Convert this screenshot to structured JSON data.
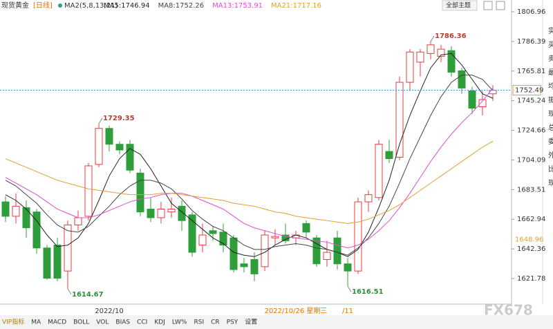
{
  "chart_data": {
    "type": "candlestick",
    "title": "现货黄金",
    "period": "[日线]",
    "indicator": "MA2(5,8,13,21)",
    "theme_menu": "全部主题",
    "categories": [
      null,
      null,
      null,
      null,
      null,
      null,
      null,
      null,
      null,
      null,
      "2022/10",
      null,
      null,
      null,
      null,
      null,
      null,
      null,
      null,
      null,
      null,
      null,
      null,
      null,
      null,
      null,
      null,
      null,
      "2022/10/26 星期三",
      null,
      null,
      null,
      null,
      "/11",
      null,
      null,
      null,
      null,
      null,
      null,
      null,
      null,
      null,
      null,
      null,
      null,
      null,
      null
    ],
    "open": [
      1675,
      1665,
      1671,
      1668,
      1643,
      1645,
      1627,
      1659,
      1665,
      1701,
      1726,
      1715,
      1715,
      1695,
      1670,
      1664,
      1668,
      1672,
      1666,
      1645,
      1655,
      1654,
      1650,
      1632,
      1635,
      1630,
      1650,
      1652,
      1650,
      1660,
      1650,
      1635,
      1650,
      1632,
      1627,
      1675,
      1678,
      1710,
      1706,
      1758,
      1772,
      1778,
      1776,
      1780,
      1766,
      1752,
      1741,
      1750
    ],
    "high": [
      1679,
      1681,
      1676,
      1670,
      1645,
      1650,
      1662,
      1669,
      1702,
      1729.35,
      1728,
      1717,
      1718,
      1698,
      1678,
      1675,
      1678,
      1676,
      1668,
      1660,
      1658,
      1660,
      1652,
      1636,
      1640,
      1655,
      1656,
      1660,
      1655,
      1662,
      1652,
      1648,
      1655,
      1636,
      1678,
      1683,
      1718,
      1718,
      1762,
      1781,
      1781,
      1786.36,
      1784,
      1783,
      1768,
      1755,
      1752,
      1756
    ],
    "low": [
      1661,
      1660,
      1650,
      1639,
      1621,
      1620,
      1614.67,
      1655,
      1662,
      1699,
      1710,
      1708,
      1695,
      1665,
      1661,
      1660,
      1664,
      1655,
      1637,
      1640,
      1648,
      1640,
      1626,
      1626,
      1620,
      1627,
      1645,
      1646,
      1645,
      1650,
      1630,
      1630,
      1628,
      1616.51,
      1625,
      1668,
      1676,
      1702,
      1704,
      1752,
      1762,
      1774,
      1772,
      1762,
      1750,
      1736,
      1735,
      1745
    ],
    "close": [
      1665,
      1672,
      1657,
      1643,
      1622,
      1622,
      1659,
      1664,
      1700,
      1726,
      1715,
      1711,
      1697,
      1668,
      1664,
      1670,
      1670,
      1662,
      1640,
      1652,
      1653,
      1645,
      1628,
      1630,
      1625,
      1652,
      1651,
      1648,
      1652,
      1654,
      1632,
      1640,
      1632,
      1627,
      1675,
      1680,
      1715,
      1705,
      1758,
      1779,
      1779,
      1784,
      1781,
      1765,
      1754,
      1740,
      1746,
      1752.49
    ],
    "up_color": "#e8383d",
    "down_color": "#2e9e3a",
    "series": [
      {
        "name": "MA5:1746.94",
        "color": "#222222",
        "values": [
          1680,
          1676,
          1670,
          1662,
          1652,
          1644,
          1645,
          1650,
          1660,
          1676,
          1693,
          1705,
          1712,
          1708,
          1698,
          1686,
          1674,
          1668,
          1662,
          1656,
          1650,
          1646,
          1640,
          1638,
          1637,
          1640,
          1645,
          1649,
          1652,
          1650,
          1646,
          1642,
          1640,
          1637,
          1642,
          1654,
          1671,
          1690,
          1715,
          1735,
          1752,
          1768,
          1777,
          1778,
          1770,
          1760,
          1750,
          1746.94
        ]
      },
      {
        "name": "MA8:1752.26",
        "color": "#444444",
        "values": [
          1690,
          1686,
          1680,
          1674,
          1666,
          1659,
          1655,
          1654,
          1658,
          1665,
          1672,
          1680,
          1686,
          1690,
          1690,
          1688,
          1684,
          1677,
          1669,
          1663,
          1658,
          1655,
          1650,
          1645,
          1642,
          1642,
          1644,
          1645,
          1646,
          1645,
          1643,
          1642,
          1640,
          1638,
          1643,
          1650,
          1660,
          1672,
          1688,
          1705,
          1720,
          1735,
          1748,
          1758,
          1763,
          1763,
          1760,
          1752.26
        ]
      },
      {
        "name": "MA13:1753.91",
        "color": "#d94fd0",
        "values": [
          1692,
          1688,
          1684,
          1680,
          1675,
          1670,
          1667,
          1664,
          1664,
          1666,
          1669,
          1672,
          1675,
          1677,
          1678,
          1680,
          1681,
          1681,
          1679,
          1676,
          1673,
          1670,
          1665,
          1660,
          1657,
          1655,
          1653,
          1651,
          1650,
          1649,
          1648,
          1647,
          1645,
          1643,
          1645,
          1649,
          1655,
          1662,
          1671,
          1681,
          1692,
          1703,
          1713,
          1722,
          1730,
          1737,
          1745,
          1753.91
        ]
      },
      {
        "name": "MA21:1717.16",
        "color": "#e0a030",
        "values": [
          1705,
          1702,
          1699,
          1696,
          1693,
          1690,
          1688,
          1686,
          1684,
          1683,
          1682,
          1681,
          1680,
          1680,
          1680,
          1681,
          1681,
          1680,
          1679,
          1678,
          1677,
          1676,
          1674,
          1673,
          1672,
          1670,
          1668,
          1667,
          1665,
          1664,
          1663,
          1662,
          1661,
          1660,
          1661,
          1663,
          1666,
          1669,
          1673,
          1678,
          1683,
          1688,
          1693,
          1698,
          1703,
          1708,
          1713,
          1717.16
        ]
      }
    ],
    "ylim": [
      1611.23,
      1815.12
    ],
    "yticks": [
      1806.96,
      1786.39,
      1765.81,
      1745.24,
      1724.66,
      1704.09,
      1683.51,
      1662.94,
      1642.36,
      1621.78
    ],
    "marker_price": 1648.96,
    "value_annotations": [
      "chart_data.high.9",
      "chart_data.low.6",
      "chart_data.low.33",
      "chart_data.high.41"
    ],
    "tabs": [
      "VIP指标",
      "MA",
      "MACD",
      "BOLL",
      "VOL",
      "BIAS",
      "CCI",
      "KDJ",
      "LW%",
      "RSI",
      "CR",
      "PSY",
      "设置"
    ],
    "side_labels": [
      "实",
      "买",
      "卖",
      "最",
      "均",
      "振",
      "现",
      "总",
      "委",
      "外",
      "比",
      "现"
    ],
    "watermark": "FX678"
  }
}
